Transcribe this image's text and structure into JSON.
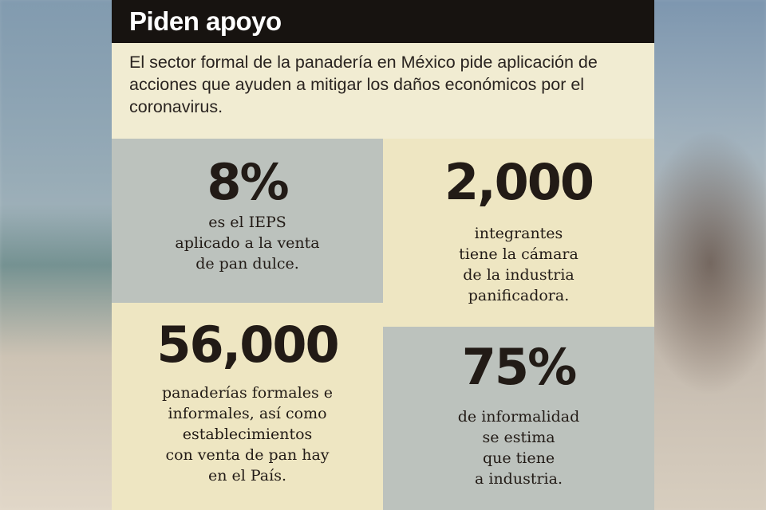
{
  "title": "Piden apoyo",
  "intro": "El sector formal de la panadería en México pide aplicación de\nacciones que ayuden a mitigar los daños económicos por el\ncoronavirus.",
  "stats": [
    {
      "value": "8%",
      "text": "es el IEPS\naplicado a la venta\nde pan dulce."
    },
    {
      "value": "2,000",
      "text": "integrantes\ntiene la cámara\nde la industria\npanificadora."
    },
    {
      "value": "56,000",
      "text": "panaderías formales e\ninformales, así como\nestablecimientos\ncon venta de pan hay\nen el País."
    },
    {
      "value": "75%",
      "text": "de informalidad\nse estima\nque tiene\na industria."
    }
  ],
  "colors": {
    "header_bg": "#171310",
    "panel_bg": "#f1ecd2",
    "gray_box": "#bcc2bd",
    "cream_box": "#eee6c2",
    "text_dark": "#221b16"
  }
}
